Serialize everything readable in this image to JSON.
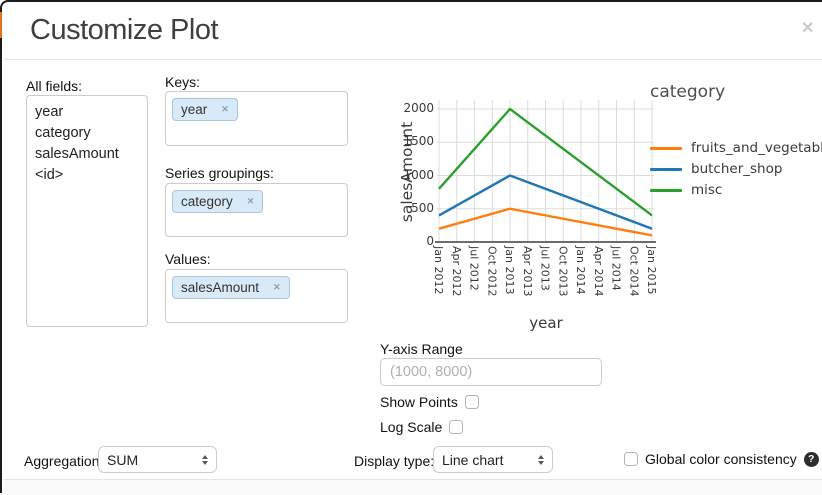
{
  "dialog": {
    "title": "Customize Plot",
    "close_icon": "✕"
  },
  "fields_panel": {
    "all_fields_label": "All fields:",
    "all_fields": [
      "year",
      "category",
      "salesAmount",
      "<id>"
    ],
    "keys_label": "Keys:",
    "keys_tags": [
      {
        "label": "year",
        "remove_icon": "✕"
      }
    ],
    "series_label": "Series groupings:",
    "series_tags": [
      {
        "label": "category",
        "remove_icon": "✕"
      }
    ],
    "values_label": "Values:",
    "values_tags": [
      {
        "label": "salesAmount",
        "remove_icon": "✕"
      }
    ]
  },
  "chart_data": {
    "type": "line",
    "xlabel": "year",
    "ylabel": "salesAmount",
    "legend_title": "category",
    "legend_position": "right",
    "grid": true,
    "x_tick_labels": [
      "Jan 2012",
      "Apr 2012",
      "Jul 2012",
      "Oct 2012",
      "Jan 2013",
      "Apr 2013",
      "Jul 2013",
      "Oct 2013",
      "Jan 2014",
      "Apr 2014",
      "Jul 2014",
      "Oct 2014",
      "Jan 2015"
    ],
    "y_ticks": [
      0,
      500,
      1000,
      1500,
      2000
    ],
    "ylim": [
      0,
      2100
    ],
    "x_points": [
      "Jan 2012",
      "Jan 2013",
      "Jan 2015"
    ],
    "x_point_tick_indices": [
      0,
      4,
      12
    ],
    "series": [
      {
        "name": "fruits_and_vegetables",
        "color": "#ff7f0e",
        "values": [
          200,
          500,
          100
        ]
      },
      {
        "name": "butcher_shop",
        "color": "#1f77b4",
        "values": [
          400,
          1000,
          200
        ]
      },
      {
        "name": "misc",
        "color": "#2ca02c",
        "values": [
          800,
          2000,
          400
        ]
      }
    ]
  },
  "options": {
    "y_axis_range_label": "Y-axis Range",
    "y_axis_range_placeholder": "(1000, 8000)",
    "y_axis_range_value": "",
    "show_points_label": "Show Points",
    "show_points_checked": false,
    "log_scale_label": "Log Scale",
    "log_scale_checked": false
  },
  "footer": {
    "aggregation_label": "Aggregation:",
    "aggregation_value": "SUM",
    "display_type_label": "Display type:",
    "display_type_value": "Line chart",
    "global_color_label": "Global color consistency",
    "global_color_checked": false,
    "help_icon": "?"
  }
}
